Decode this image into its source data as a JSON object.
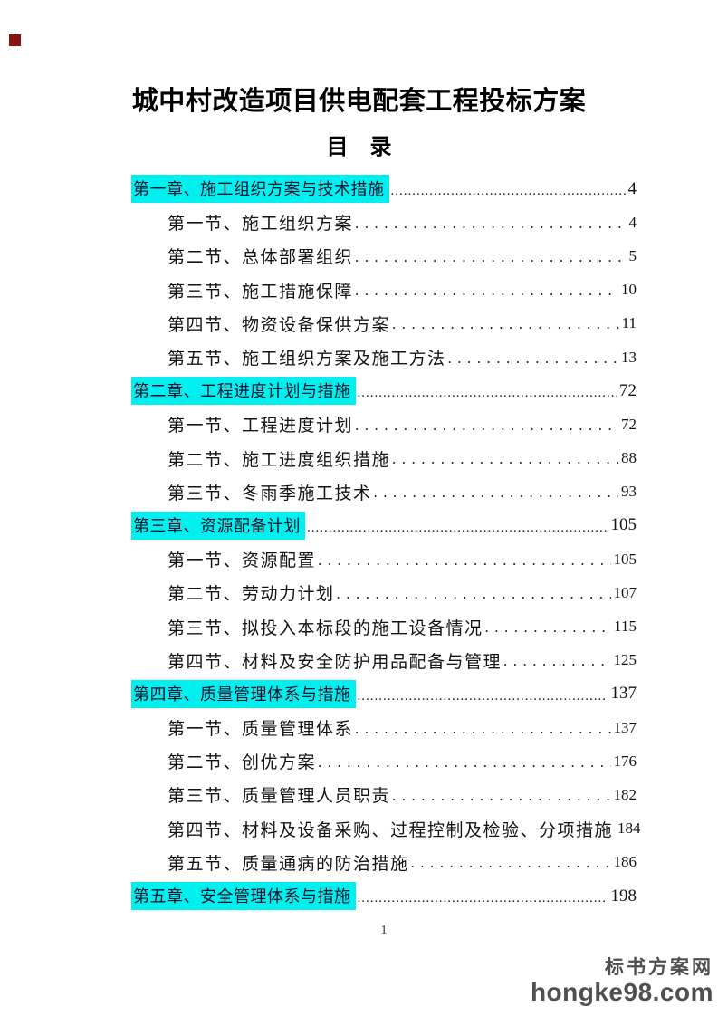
{
  "document": {
    "title": "城中村改造项目供电配套工程投标方案",
    "toc_heading": "目　录",
    "footer_page_number": "1"
  },
  "colors": {
    "chapter_highlight": "#00efef",
    "corner_marker": "#8a1212",
    "watermark_text": "#4f5052"
  },
  "toc": {
    "leader_char": ".",
    "entries": [
      {
        "level": 1,
        "label": "第一章、施工组织方案与技术措施",
        "page": "4"
      },
      {
        "level": 2,
        "label": "第一节、施工组织方案",
        "page": "4"
      },
      {
        "level": 2,
        "label": "第二节、总体部署组织",
        "page": "5"
      },
      {
        "level": 2,
        "label": "第三节、施工措施保障",
        "page": "10"
      },
      {
        "level": 2,
        "label": "第四节、物资设备保供方案",
        "page": "11"
      },
      {
        "level": 2,
        "label": "第五节、施工组织方案及施工方法",
        "page": "13"
      },
      {
        "level": 1,
        "label": "第二章、工程进度计划与措施",
        "page": "72"
      },
      {
        "level": 2,
        "label": "第一节、工程进度计划",
        "page": "72"
      },
      {
        "level": 2,
        "label": "第二节、施工进度组织措施",
        "page": "88"
      },
      {
        "level": 2,
        "label": "第三节、冬雨季施工技术",
        "page": "93"
      },
      {
        "level": 1,
        "label": "第三章、资源配备计划",
        "page": "105"
      },
      {
        "level": 2,
        "label": "第一节、资源配置",
        "page": "105"
      },
      {
        "level": 2,
        "label": "第二节、劳动力计划",
        "page": "107"
      },
      {
        "level": 2,
        "label": "第三节、拟投入本标段的施工设备情况",
        "page": "115"
      },
      {
        "level": 2,
        "label": "第四节、材料及安全防护用品配备与管理",
        "page": "125"
      },
      {
        "level": 1,
        "label": "第四章、质量管理体系与措施",
        "page": "137"
      },
      {
        "level": 2,
        "label": "第一节、质量管理体系",
        "page": "137"
      },
      {
        "level": 2,
        "label": "第二节、创优方案",
        "page": "176"
      },
      {
        "level": 2,
        "label": "第三节、质量管理人员职责",
        "page": "182"
      },
      {
        "level": 2,
        "label": "第四节、材料及设备采购、过程控制及检验、分项措施",
        "page": "184"
      },
      {
        "level": 2,
        "label": "第五节、质量通病的防治措施",
        "page": "186"
      },
      {
        "level": 1,
        "label": "第五章、安全管理体系与措施",
        "page": "198"
      }
    ]
  },
  "watermark": {
    "site_name": "标书方案网",
    "site_url": "hongke98.com"
  }
}
